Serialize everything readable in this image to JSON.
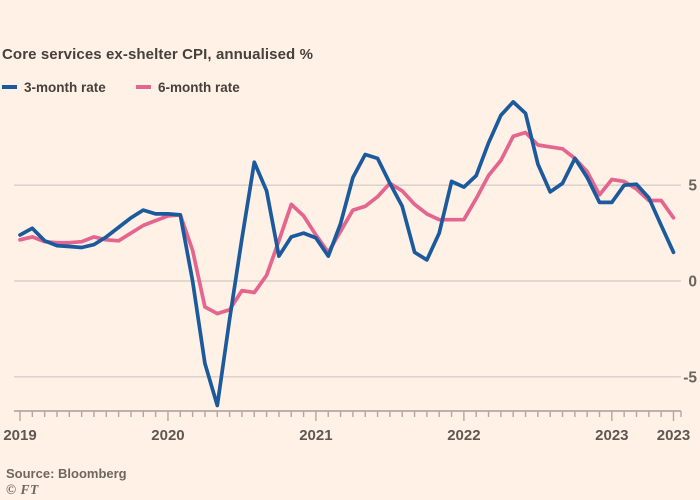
{
  "header": {
    "title": "Core services ex-shelter CPI, annualised %"
  },
  "legend": {
    "items": [
      {
        "label": "3-month rate",
        "color": "#1c5a9e"
      },
      {
        "label": "6-month rate",
        "color": "#e4658e"
      }
    ]
  },
  "footer": {
    "source": "Source: Bloomberg",
    "ft_mark": "© FT"
  },
  "colors": {
    "background": "#fff1e5",
    "gridline": "#d7cfc7",
    "axis": "#b2a89e",
    "year_label": "#5e5852",
    "value_label": "#6b645d"
  },
  "chart_data": {
    "type": "line",
    "title": "Core services ex-shelter CPI, annualised %",
    "x_unit": "month",
    "x_range": [
      "2019-01",
      "2023-06"
    ],
    "grid": "horizontal-only",
    "legend_position": "top-left",
    "ylim": [
      -6.8,
      9.8
    ],
    "y_ticks": [
      {
        "label": "5",
        "value": 5
      },
      {
        "label": "0",
        "value": 0
      },
      {
        "label": "-5",
        "value": -5
      }
    ],
    "x_tick_labels": [
      {
        "label": "2019",
        "month_index": 0
      },
      {
        "label": "2020",
        "month_index": 12
      },
      {
        "label": "2021",
        "month_index": 24
      },
      {
        "label": "2022",
        "month_index": 36
      },
      {
        "label": "2023",
        "month_index": 48
      },
      {
        "label": "2023",
        "month_index": 53
      }
    ],
    "series": [
      {
        "name": "3-month rate",
        "color": "#1c5a9e",
        "values": [
          2.4,
          2.75,
          2.1,
          1.85,
          1.8,
          1.75,
          1.9,
          2.3,
          2.8,
          3.3,
          3.7,
          3.5,
          3.5,
          3.45,
          0.0,
          -4.3,
          -6.5,
          -2.0,
          2.2,
          6.2,
          4.7,
          1.3,
          2.3,
          2.5,
          2.25,
          1.3,
          3.0,
          5.4,
          6.6,
          6.4,
          5.1,
          3.9,
          1.5,
          1.1,
          2.5,
          5.2,
          4.9,
          5.5,
          7.2,
          8.65,
          9.35,
          8.75,
          6.1,
          4.65,
          5.1,
          6.4,
          5.4,
          4.1,
          4.1,
          5.0,
          5.05,
          4.35,
          2.9,
          1.5
        ]
      },
      {
        "name": "6-month rate",
        "color": "#e4658e",
        "values": [
          2.15,
          2.3,
          2.05,
          2.0,
          2.0,
          2.05,
          2.3,
          2.15,
          2.1,
          2.5,
          2.9,
          3.15,
          3.4,
          3.45,
          1.6,
          -1.35,
          -1.7,
          -1.5,
          -0.5,
          -0.6,
          0.3,
          2.1,
          4.0,
          3.4,
          2.4,
          1.5,
          2.6,
          3.7,
          3.9,
          4.4,
          5.1,
          4.7,
          4.0,
          3.5,
          3.2,
          3.2,
          3.2,
          4.3,
          5.5,
          6.3,
          7.55,
          7.75,
          7.1,
          7.0,
          6.9,
          6.4,
          5.7,
          4.5,
          5.3,
          5.2,
          4.8,
          4.2,
          4.2,
          3.3
        ]
      }
    ]
  }
}
